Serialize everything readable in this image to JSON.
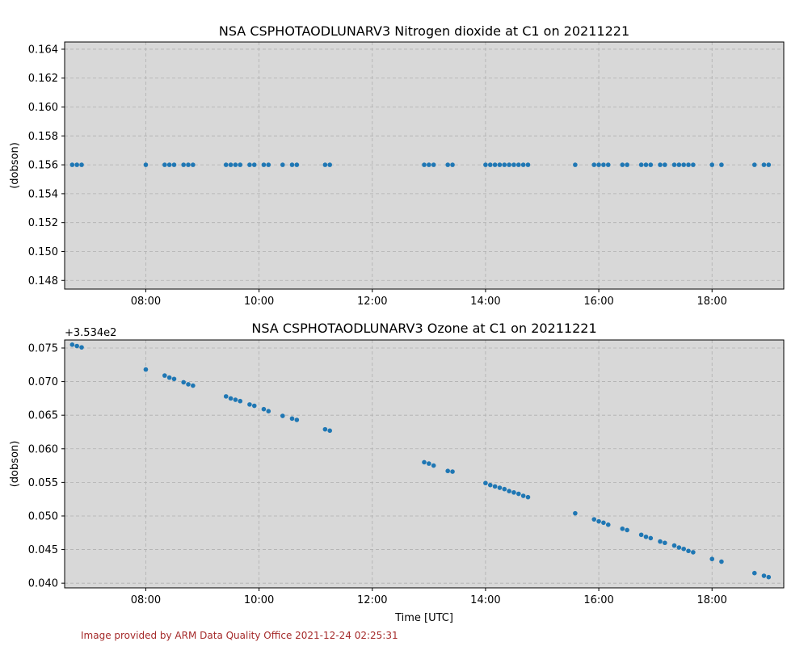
{
  "footer_text": "Image provided by ARM Data Quality Office 2021-12-24 02:25:31",
  "colors": {
    "plot_bg": "#d8d8d8",
    "marker": "#1f77b4",
    "grid": "#b0b0b0",
    "footer": "#a52a2a"
  },
  "chart_data": [
    {
      "type": "scatter",
      "title": "NSA CSPHOTAODLUNARV3 Nitrogen dioxide at C1 on 20211221",
      "xlabel": "",
      "ylabel": "(dobson)",
      "offset_label": "",
      "grid": true,
      "xlim": [
        "06:34",
        "19:16"
      ],
      "ylim": [
        0.1474,
        0.1645
      ],
      "x_ticks": [
        "08:00",
        "10:00",
        "12:00",
        "14:00",
        "16:00",
        "18:00"
      ],
      "y_ticks": [
        "0.148",
        "0.150",
        "0.152",
        "0.154",
        "0.156",
        "0.158",
        "0.160",
        "0.162",
        "0.164"
      ],
      "series": [
        {
          "x": [
            "06:42",
            "06:47",
            "06:52",
            "08:00",
            "08:20",
            "08:25",
            "08:30",
            "08:40",
            "08:45",
            "08:50",
            "09:25",
            "09:30",
            "09:35",
            "09:40",
            "09:50",
            "09:55",
            "10:05",
            "10:10",
            "10:25",
            "10:35",
            "10:40",
            "11:10",
            "11:15",
            "12:55",
            "13:00",
            "13:05",
            "13:20",
            "13:25",
            "14:00",
            "14:05",
            "14:10",
            "14:15",
            "14:20",
            "14:25",
            "14:30",
            "14:35",
            "14:40",
            "14:45",
            "15:35",
            "15:55",
            "16:00",
            "16:05",
            "16:10",
            "16:25",
            "16:30",
            "16:45",
            "16:50",
            "16:55",
            "17:05",
            "17:10",
            "17:20",
            "17:25",
            "17:30",
            "17:35",
            "17:40",
            "18:00",
            "18:10",
            "18:45",
            "18:55",
            "19:00"
          ],
          "y": [
            0.156,
            0.156,
            0.156,
            0.156,
            0.156,
            0.156,
            0.156,
            0.156,
            0.156,
            0.156,
            0.156,
            0.156,
            0.156,
            0.156,
            0.156,
            0.156,
            0.156,
            0.156,
            0.156,
            0.156,
            0.156,
            0.156,
            0.156,
            0.156,
            0.156,
            0.156,
            0.156,
            0.156,
            0.156,
            0.156,
            0.156,
            0.156,
            0.156,
            0.156,
            0.156,
            0.156,
            0.156,
            0.156,
            0.156,
            0.156,
            0.156,
            0.156,
            0.156,
            0.156,
            0.156,
            0.156,
            0.156,
            0.156,
            0.156,
            0.156,
            0.156,
            0.156,
            0.156,
            0.156,
            0.156,
            0.156,
            0.156,
            0.156,
            0.156,
            0.156
          ]
        }
      ]
    },
    {
      "type": "scatter",
      "title": "NSA CSPHOTAODLUNARV3 Ozone at C1 on 20211221",
      "xlabel": "Time [UTC]",
      "ylabel": "(dobson)",
      "offset_label": "+3.534e2",
      "grid": true,
      "xlim": [
        "06:34",
        "19:16"
      ],
      "ylim": [
        0.0393,
        0.0762
      ],
      "x_ticks": [
        "08:00",
        "10:00",
        "12:00",
        "14:00",
        "16:00",
        "18:00"
      ],
      "y_ticks": [
        "0.040",
        "0.045",
        "0.050",
        "0.055",
        "0.060",
        "0.065",
        "0.070",
        "0.075"
      ],
      "series": [
        {
          "x": [
            "06:42",
            "06:47",
            "06:52",
            "08:00",
            "08:20",
            "08:25",
            "08:30",
            "08:40",
            "08:45",
            "08:50",
            "09:25",
            "09:30",
            "09:35",
            "09:40",
            "09:50",
            "09:55",
            "10:05",
            "10:10",
            "10:25",
            "10:35",
            "10:40",
            "11:10",
            "11:15",
            "12:55",
            "13:00",
            "13:05",
            "13:20",
            "13:25",
            "14:00",
            "14:05",
            "14:10",
            "14:15",
            "14:20",
            "14:25",
            "14:30",
            "14:35",
            "14:40",
            "14:45",
            "15:35",
            "15:55",
            "16:00",
            "16:05",
            "16:10",
            "16:25",
            "16:30",
            "16:45",
            "16:50",
            "16:55",
            "17:05",
            "17:10",
            "17:20",
            "17:25",
            "17:30",
            "17:35",
            "17:40",
            "18:00",
            "18:10",
            "18:45",
            "18:55",
            "19:00"
          ],
          "y": [
            0.0755,
            0.0753,
            0.0751,
            0.0718,
            0.0709,
            0.0706,
            0.0704,
            0.0699,
            0.0696,
            0.0694,
            0.0678,
            0.0675,
            0.0673,
            0.0671,
            0.0666,
            0.0664,
            0.0659,
            0.0656,
            0.0649,
            0.0645,
            0.0643,
            0.0629,
            0.0627,
            0.058,
            0.0578,
            0.0575,
            0.0567,
            0.0566,
            0.0549,
            0.0546,
            0.0544,
            0.0542,
            0.054,
            0.0537,
            0.0535,
            0.0533,
            0.053,
            0.0528,
            0.0504,
            0.0495,
            0.0492,
            0.049,
            0.0487,
            0.0481,
            0.0479,
            0.0472,
            0.0469,
            0.0467,
            0.0462,
            0.046,
            0.0456,
            0.0453,
            0.0451,
            0.0448,
            0.0446,
            0.0436,
            0.0432,
            0.0415,
            0.0411,
            0.0409
          ]
        }
      ]
    }
  ]
}
